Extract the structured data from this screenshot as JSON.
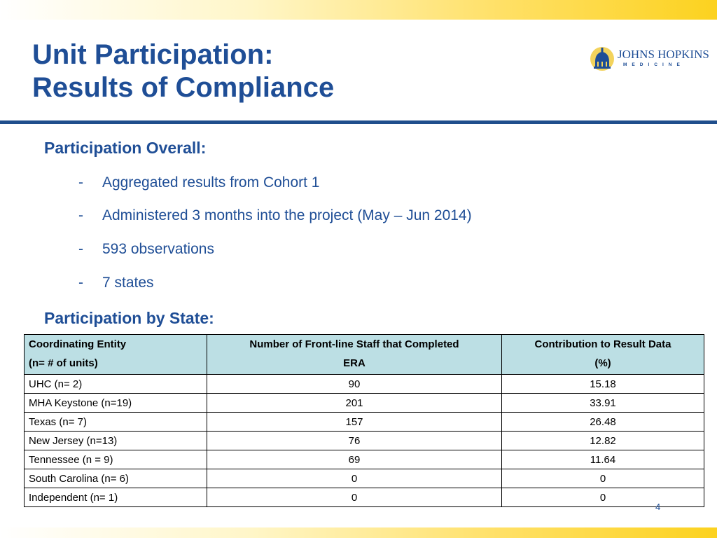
{
  "slide": {
    "title_line1": "Unit Participation:",
    "title_line2": "Results of Compliance",
    "logo": {
      "name": "JOHNS HOPKINS",
      "sub": "MEDICINE"
    },
    "section1": {
      "heading": "Participation Overall:",
      "bullets": [
        "Aggregated  results from Cohort 1",
        "Administered 3 months into the project  (May – Jun 2014)",
        "593 observations",
        "7 states"
      ]
    },
    "section2": {
      "heading": "Participation by State:"
    },
    "page_number": "4",
    "colors": {
      "title": "#1f4e96",
      "header_fill": "#bcdfe4",
      "band": "#fcd21f"
    }
  },
  "table": {
    "headers": {
      "col1_line1": "Coordinating  Entity",
      "col1_line2": "(n= # of units)",
      "col2_line1": "Number of Front-line Staff that Completed",
      "col2_line2": "ERA",
      "col3_line1": "Contribution to Result Data",
      "col3_line2": "(%)"
    },
    "rows": [
      {
        "entity": "UHC (n= 2)",
        "staff": "90",
        "contribution": "15.18"
      },
      {
        "entity": "MHA Keystone (n=19)",
        "staff": "201",
        "contribution": "33.91"
      },
      {
        "entity": "Texas (n= 7)",
        "staff": "157",
        "contribution": "26.48"
      },
      {
        "entity": "New Jersey (n=13)",
        "staff": "76",
        "contribution": "12.82"
      },
      {
        "entity": "Tennessee (n = 9)",
        "staff": "69",
        "contribution": "11.64"
      },
      {
        "entity": "South Carolina (n= 6)",
        "staff": "0",
        "contribution": "0"
      },
      {
        "entity": "Independent (n= 1)",
        "staff": "0",
        "contribution": "0"
      }
    ]
  }
}
